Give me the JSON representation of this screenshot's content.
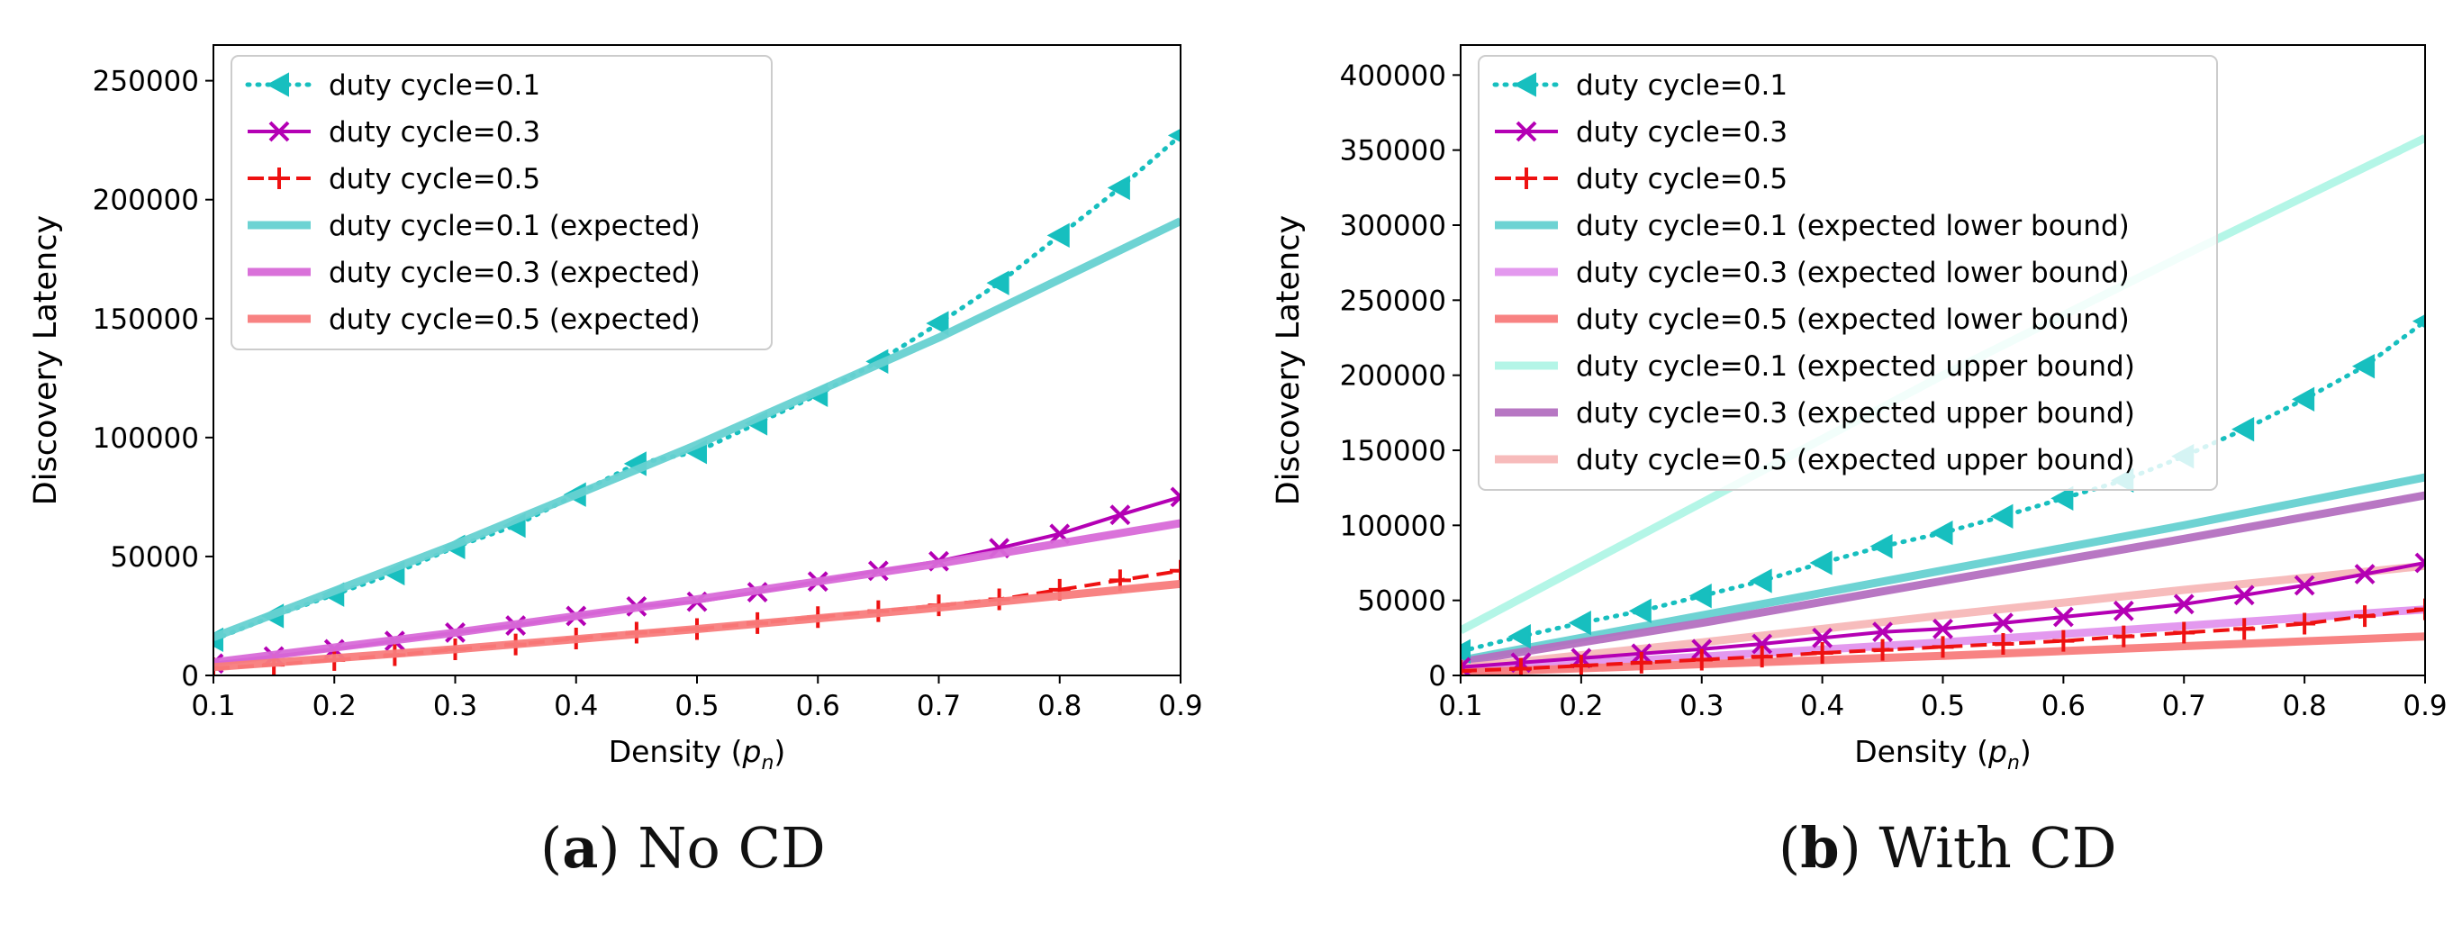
{
  "captions": [
    {
      "letter": "a",
      "text": "No CD"
    },
    {
      "letter": "b",
      "text": "With CD"
    }
  ],
  "chart_data": [
    {
      "type": "line",
      "panel": "a",
      "title": "",
      "xlabel": "Density",
      "xlabel_math": "p",
      "xlabel_sub": "n",
      "ylabel": "Discovery Latency",
      "xlim": [
        0.1,
        0.9
      ],
      "ylim": [
        0,
        265000
      ],
      "xticks": [
        0.1,
        0.2,
        0.3,
        0.4,
        0.5,
        0.6,
        0.7,
        0.8,
        0.9
      ],
      "xtick_labels": [
        "0.1",
        "0.2",
        "0.3",
        "0.4",
        "0.5",
        "0.6",
        "0.7",
        "0.8",
        "0.9"
      ],
      "yticks": [
        0,
        50000,
        100000,
        150000,
        200000,
        250000
      ],
      "ytick_labels": [
        "0",
        "50000",
        "100000",
        "150000",
        "200000",
        "250000"
      ],
      "grid": false,
      "legend_position": "top-left",
      "series": [
        {
          "name": "duty cycle=0.1",
          "style": "dotted-marker",
          "marker": "triangle-left",
          "color": "#17bfbf",
          "x": [
            0.1,
            0.15,
            0.2,
            0.25,
            0.3,
            0.35,
            0.4,
            0.45,
            0.5,
            0.55,
            0.6,
            0.65,
            0.7,
            0.75,
            0.8,
            0.85,
            0.9
          ],
          "values": [
            15000,
            25000,
            34000,
            43000,
            54000,
            63000,
            76000,
            89000,
            94000,
            106000,
            118000,
            132000,
            148000,
            165000,
            185000,
            205000,
            227000
          ]
        },
        {
          "name": "duty cycle=0.3",
          "style": "solid-marker",
          "marker": "x",
          "color": "#b400b4",
          "x": [
            0.1,
            0.15,
            0.2,
            0.25,
            0.3,
            0.35,
            0.4,
            0.45,
            0.5,
            0.55,
            0.6,
            0.65,
            0.7,
            0.75,
            0.8,
            0.85,
            0.9
          ],
          "values": [
            5000,
            8000,
            11000,
            14500,
            18000,
            21000,
            25000,
            29000,
            31000,
            35000,
            39500,
            44000,
            48000,
            53500,
            59500,
            67500,
            75000
          ]
        },
        {
          "name": "duty cycle=0.5",
          "style": "dashed-marker",
          "marker": "plus",
          "color": "#ee1111",
          "x": [
            0.1,
            0.15,
            0.2,
            0.25,
            0.3,
            0.35,
            0.4,
            0.45,
            0.5,
            0.55,
            0.6,
            0.65,
            0.7,
            0.75,
            0.8,
            0.85,
            0.9
          ],
          "values": [
            3000,
            4500,
            6500,
            8500,
            11000,
            13000,
            15500,
            18000,
            19500,
            22000,
            24500,
            27000,
            29500,
            32000,
            36000,
            40000,
            44000
          ]
        },
        {
          "name": "duty cycle=0.1 (expected)",
          "style": "thick",
          "color": "#66d1d1",
          "x": [
            0.1,
            0.3,
            0.5,
            0.7,
            0.9
          ],
          "values": [
            16000,
            55000,
            97000,
            142000,
            191000
          ]
        },
        {
          "name": "duty cycle=0.3 (expected)",
          "style": "thick",
          "color": "#d86ad8",
          "x": [
            0.1,
            0.3,
            0.5,
            0.7,
            0.9
          ],
          "values": [
            5500,
            18000,
            32000,
            47000,
            64000
          ]
        },
        {
          "name": "duty cycle=0.5 (expected)",
          "style": "thick",
          "color": "#f87c7c",
          "x": [
            0.1,
            0.3,
            0.5,
            0.7,
            0.9
          ],
          "values": [
            3500,
            11000,
            19500,
            28500,
            38500
          ]
        }
      ]
    },
    {
      "type": "line",
      "panel": "b",
      "title": "",
      "xlabel": "Density",
      "xlabel_math": "p",
      "xlabel_sub": "n",
      "ylabel": "Discovery Latency",
      "xlim": [
        0.1,
        0.9
      ],
      "ylim": [
        0,
        420000
      ],
      "xticks": [
        0.1,
        0.2,
        0.3,
        0.4,
        0.5,
        0.6,
        0.7,
        0.8,
        0.9
      ],
      "xtick_labels": [
        "0.1",
        "0.2",
        "0.3",
        "0.4",
        "0.5",
        "0.6",
        "0.7",
        "0.8",
        "0.9"
      ],
      "yticks": [
        0,
        50000,
        100000,
        150000,
        200000,
        250000,
        300000,
        350000,
        400000
      ],
      "ytick_labels": [
        "0",
        "50000",
        "100000",
        "150000",
        "200000",
        "250000",
        "300000",
        "350000",
        "400000"
      ],
      "grid": false,
      "legend_position": "top-left",
      "series": [
        {
          "name": "duty cycle=0.1 (expected upper bound)",
          "style": "thick-light",
          "color": "#b0f5e6",
          "x": [
            0.1,
            0.3,
            0.5,
            0.7,
            0.9
          ],
          "values": [
            30000,
            115000,
            200000,
            280000,
            358000
          ]
        },
        {
          "name": "duty cycle=0.1 (expected lower bound)",
          "style": "thick",
          "color": "#66d1d1",
          "x": [
            0.1,
            0.3,
            0.5,
            0.7,
            0.9
          ],
          "values": [
            10000,
            40000,
            70000,
            100000,
            132000
          ]
        },
        {
          "name": "duty cycle=0.3 (expected upper bound)",
          "style": "thick",
          "color": "#b470c0",
          "x": [
            0.1,
            0.3,
            0.5,
            0.7,
            0.9
          ],
          "values": [
            9000,
            35000,
            63000,
            91000,
            120000
          ]
        },
        {
          "name": "duty cycle=0.5 (expected upper bound)",
          "style": "thick-light",
          "color": "#f7b8b8",
          "x": [
            0.1,
            0.3,
            0.5,
            0.7,
            0.9
          ],
          "values": [
            5000,
            22000,
            40000,
            57000,
            73000
          ]
        },
        {
          "name": "duty cycle=0.3 (expected lower bound)",
          "style": "thick",
          "color": "#e294ee",
          "x": [
            0.1,
            0.3,
            0.5,
            0.7,
            0.9
          ],
          "values": [
            3500,
            12500,
            22000,
            33000,
            44000
          ]
        },
        {
          "name": "duty cycle=0.5 (expected lower bound)",
          "style": "thick",
          "color": "#f87c7c",
          "x": [
            0.1,
            0.3,
            0.5,
            0.7,
            0.9
          ],
          "values": [
            2000,
            7500,
            13000,
            19500,
            26000
          ]
        },
        {
          "name": "duty cycle=0.1",
          "style": "dotted-marker",
          "marker": "triangle-left",
          "color": "#17bfbf",
          "x": [
            0.1,
            0.15,
            0.2,
            0.25,
            0.3,
            0.35,
            0.4,
            0.45,
            0.5,
            0.55,
            0.6,
            0.65,
            0.7,
            0.75,
            0.8,
            0.85,
            0.9
          ],
          "values": [
            16000,
            26000,
            35000,
            43000,
            53000,
            63000,
            75000,
            86000,
            95000,
            106000,
            118000,
            130000,
            146000,
            164000,
            184000,
            206000,
            236000
          ]
        },
        {
          "name": "duty cycle=0.3",
          "style": "solid-marker",
          "marker": "x",
          "color": "#b400b4",
          "x": [
            0.1,
            0.15,
            0.2,
            0.25,
            0.3,
            0.35,
            0.4,
            0.45,
            0.5,
            0.55,
            0.6,
            0.65,
            0.7,
            0.75,
            0.8,
            0.85,
            0.9
          ],
          "values": [
            5500,
            8500,
            11500,
            14500,
            17500,
            21000,
            25000,
            29000,
            31000,
            35000,
            39000,
            43000,
            47500,
            53500,
            60000,
            67500,
            75000
          ]
        },
        {
          "name": "duty cycle=0.5",
          "style": "dashed-marker",
          "marker": "plus",
          "color": "#ee1111",
          "x": [
            0.1,
            0.15,
            0.2,
            0.25,
            0.3,
            0.35,
            0.4,
            0.45,
            0.5,
            0.55,
            0.6,
            0.65,
            0.7,
            0.75,
            0.8,
            0.85,
            0.9
          ],
          "values": [
            3000,
            4500,
            6500,
            8500,
            10500,
            12500,
            15000,
            17000,
            19000,
            21000,
            23000,
            26000,
            28500,
            31000,
            34500,
            39500,
            44000
          ]
        }
      ],
      "legend_order": [
        "duty cycle=0.1",
        "duty cycle=0.3",
        "duty cycle=0.5",
        "duty cycle=0.1 (expected lower bound)",
        "duty cycle=0.3 (expected lower bound)",
        "duty cycle=0.5 (expected lower bound)",
        "duty cycle=0.1 (expected upper bound)",
        "duty cycle=0.3 (expected upper bound)",
        "duty cycle=0.5 (expected upper bound)"
      ]
    }
  ]
}
